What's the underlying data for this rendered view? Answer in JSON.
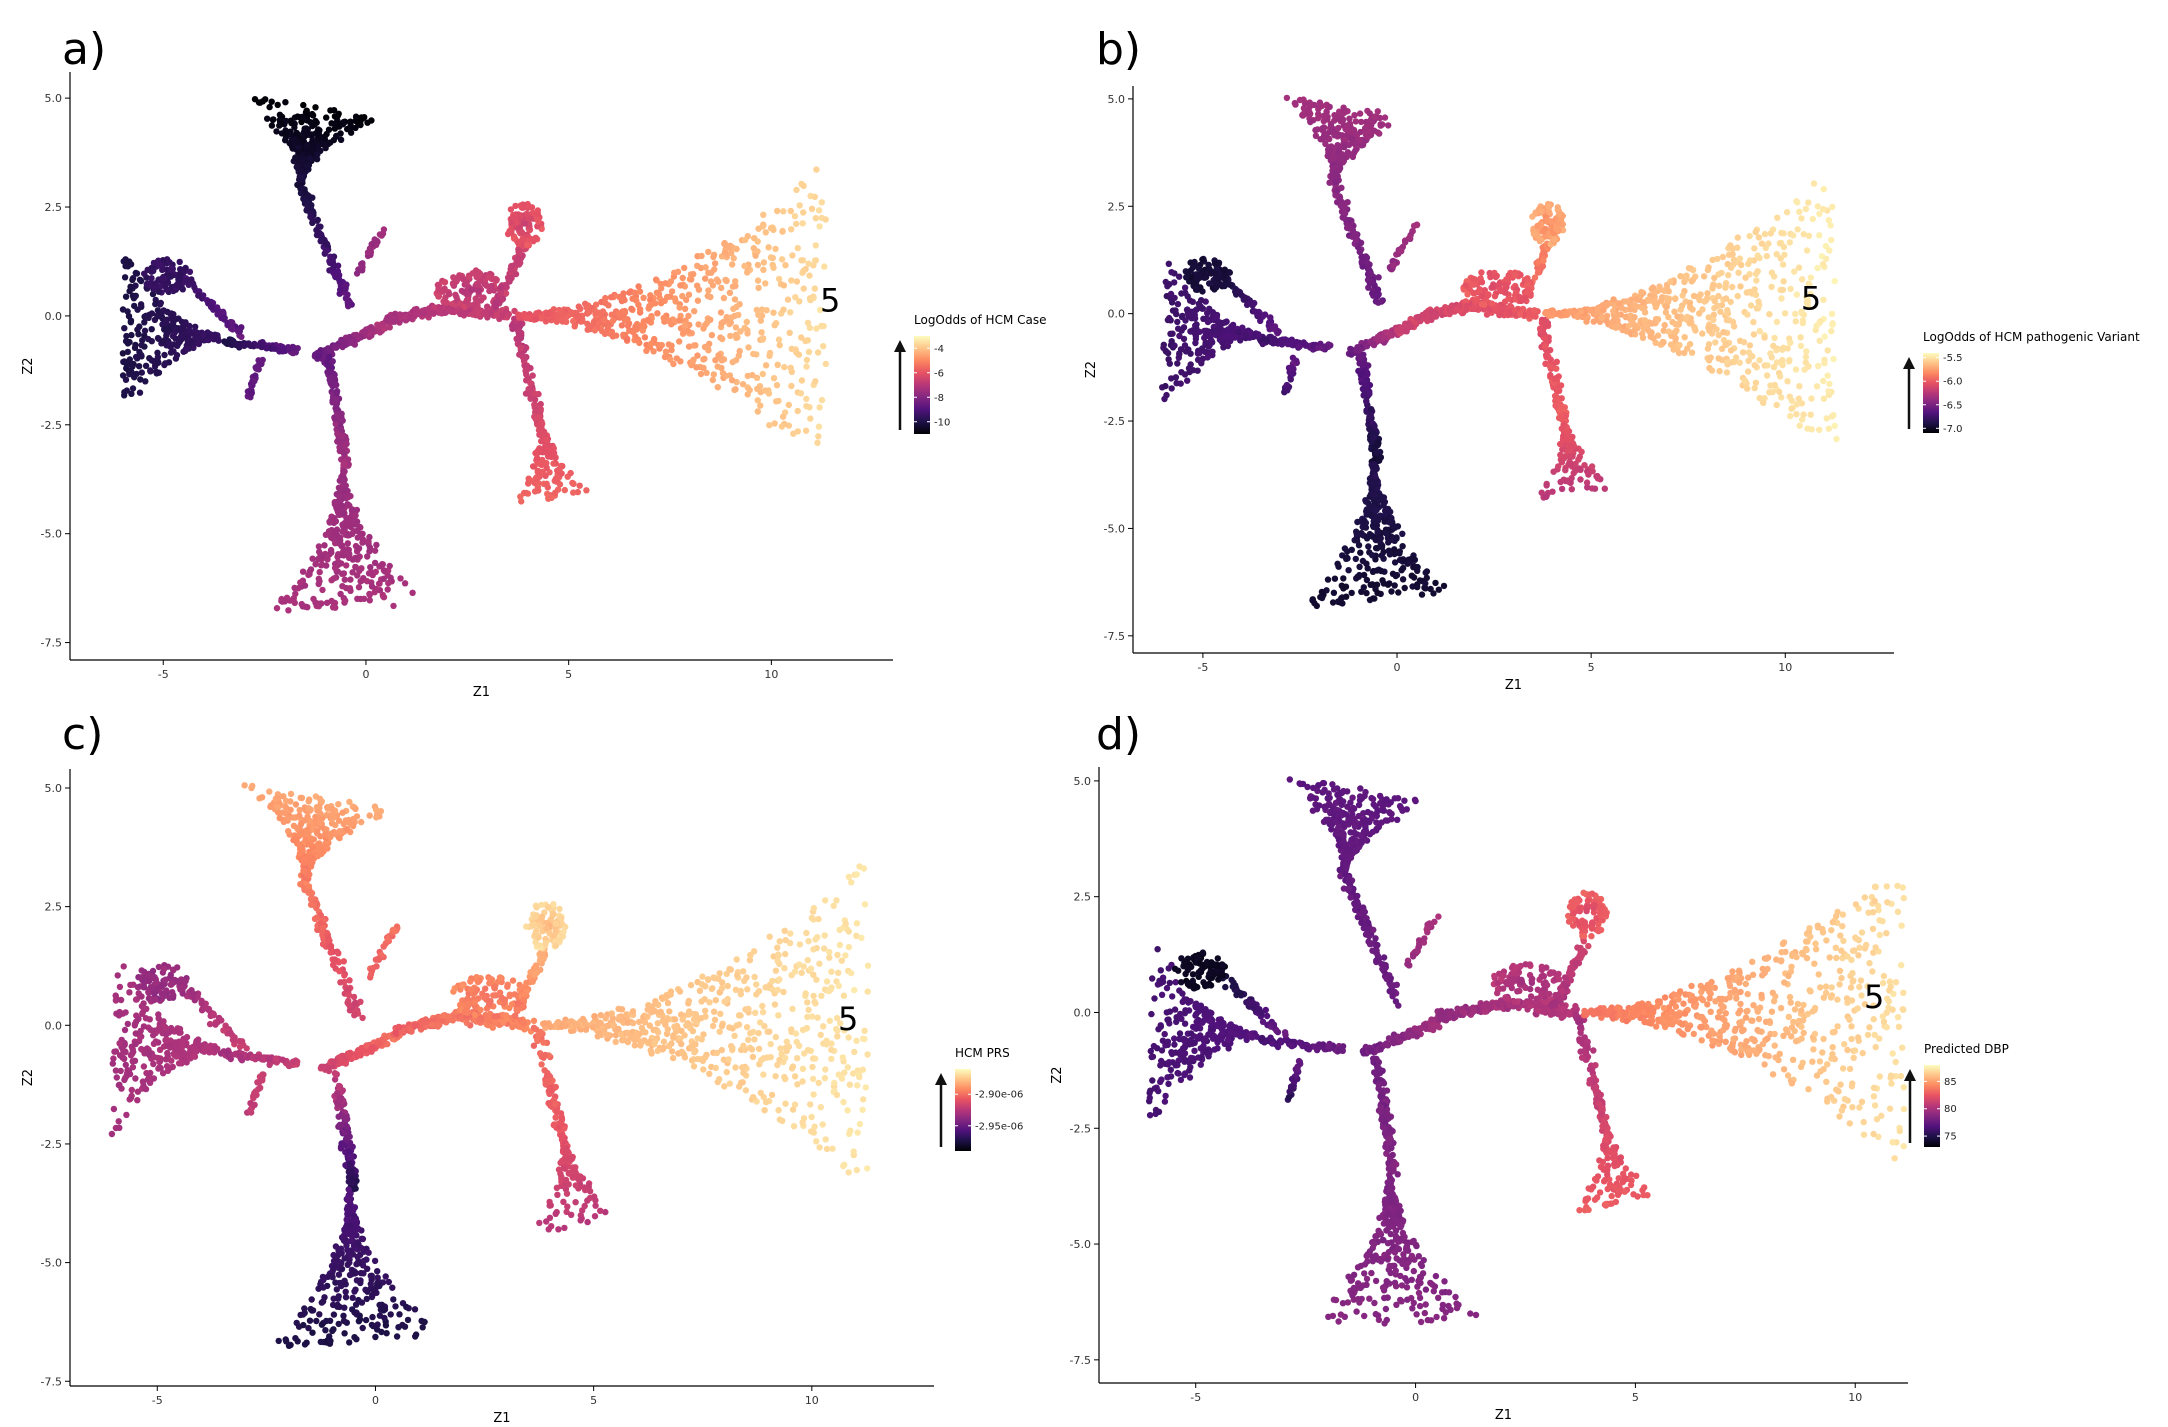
{
  "colors": {
    "magma": [
      "#000004",
      "#1d1147",
      "#51127c",
      "#832681",
      "#b73779",
      "#e75263",
      "#fc8961",
      "#fec488",
      "#fcfdbf"
    ]
  },
  "chart_data": [
    {
      "id": "a",
      "panel_label": "a)",
      "type": "scatter",
      "xlabel": "Z1",
      "ylabel": "Z2",
      "xlim": [
        -7.3,
        13
      ],
      "ylim": [
        -7.9,
        5.6
      ],
      "xticks": [
        -5,
        0,
        5,
        10
      ],
      "xtick_labels": [
        "-5",
        "0",
        "5",
        "10"
      ],
      "yticks": [
        5,
        2.5,
        0,
        -2.5,
        -5,
        -7.5
      ],
      "ytick_labels": [
        "5.0",
        "2.5",
        "0.0",
        "-2.5",
        "-5.0",
        "-7.5"
      ],
      "annotation": "5",
      "annotation_pos": [
        11.2,
        0.1
      ],
      "legend": {
        "title": "LogOdds of HCM Case",
        "ticks": [
          -4,
          -6,
          -8,
          -10
        ],
        "tick_labels": [
          "-4",
          "-6",
          "-8",
          "-10"
        ],
        "range": [
          -11,
          -3
        ]
      },
      "colormap": {
        "tips": [
          0.0,
          0.12,
          0.18,
          0.47
        ],
        "trunk": 0.3,
        "junction": 0.5,
        "upper_right": 0.55,
        "right_fan_inner": 0.62,
        "right_fan_outer": 0.93,
        "right_lower_inner": 0.58,
        "right_lower_outer": 0.68
      }
    },
    {
      "id": "b",
      "panel_label": "b)",
      "type": "scatter",
      "xlabel": "Z1",
      "ylabel": "Z2",
      "xlim": [
        -6.8,
        12.8
      ],
      "ylim": [
        -7.9,
        5.3
      ],
      "xticks": [
        -5,
        0,
        5,
        10
      ],
      "xtick_labels": [
        "-5",
        "0",
        "5",
        "10"
      ],
      "yticks": [
        5,
        2.5,
        0,
        -2.5,
        -5,
        -7.5
      ],
      "ytick_labels": [
        "5.0",
        "2.5",
        "0.0",
        "-2.5",
        "-5.0",
        "-7.5"
      ],
      "annotation": "5",
      "annotation_pos": [
        10.4,
        0.1
      ],
      "legend": {
        "title": "LogOdds of HCM pathogenic Variant",
        "ticks": [
          -5.5,
          -6.0,
          -6.5,
          -7.0
        ],
        "tick_labels": [
          "-5.5",
          "-6.0",
          "-6.5",
          "-7.0"
        ],
        "range": [
          -7.1,
          -5.4
        ]
      },
      "colormap": {
        "tips": [
          0.45,
          0.2,
          0.1,
          0.08
        ],
        "trunk": 0.3,
        "junction": 0.6,
        "upper_right": 0.75,
        "right_fan_inner": 0.78,
        "right_fan_outer": 0.97,
        "right_lower_inner": 0.66,
        "right_lower_outer": 0.5
      }
    },
    {
      "id": "c",
      "panel_label": "c)",
      "type": "scatter",
      "xlabel": "Z1",
      "ylabel": "Z2",
      "xlim": [
        -7.0,
        12.8
      ],
      "ylim": [
        -7.6,
        5.4
      ],
      "xticks": [
        -5,
        0,
        5,
        10
      ],
      "xtick_labels": [
        "-5",
        "0",
        "5",
        "10"
      ],
      "yticks": [
        5,
        2.5,
        0,
        -2.5,
        -5,
        -7.5
      ],
      "ytick_labels": [
        "5.0",
        "2.5",
        "0.0",
        "-2.5",
        "-5.0",
        "-7.5"
      ],
      "annotation": "5",
      "annotation_pos": [
        10.6,
        -0.1
      ],
      "legend": {
        "title": "HCM PRS",
        "ticks": [
          -2.9e-06,
          -2.95e-06
        ],
        "tick_labels": [
          "-2.90e-06",
          "-2.95e-06"
        ],
        "range": [
          -2.99e-06,
          -2.86e-06
        ]
      },
      "colormap": {
        "tips": [
          0.82,
          0.45,
          0.42,
          0.12
        ],
        "trunk": 0.55,
        "junction": 0.7,
        "upper_right": 0.85,
        "right_fan_inner": 0.82,
        "right_fan_outer": 0.95,
        "right_lower_inner": 0.62,
        "right_lower_outer": 0.5
      }
    },
    {
      "id": "d",
      "panel_label": "d)",
      "type": "scatter",
      "xlabel": "Z1",
      "ylabel": "Z2",
      "xlim": [
        -7.2,
        11.2
      ],
      "ylim": [
        -8.0,
        5.3
      ],
      "xticks": [
        -5,
        0,
        5,
        10
      ],
      "xtick_labels": [
        "-5",
        "0",
        "5",
        "10"
      ],
      "yticks": [
        5,
        2.5,
        0,
        -2.5,
        -5,
        -7.5
      ],
      "ytick_labels": [
        "5.0",
        "2.5",
        "0.0",
        "-2.5",
        "-5.0",
        "-7.5"
      ],
      "annotation": "5",
      "annotation_pos": [
        10.2,
        0.1
      ],
      "legend": {
        "title": "Predicted DBP",
        "ticks": [
          85,
          80,
          75
        ],
        "tick_labels": [
          "85",
          "80",
          "75"
        ],
        "range": [
          73,
          88
        ]
      },
      "colormap": {
        "tips": [
          0.28,
          0.22,
          0.05,
          0.38
        ],
        "trunk": 0.32,
        "junction": 0.45,
        "upper_right": 0.58,
        "right_fan_inner": 0.7,
        "right_fan_outer": 0.95,
        "right_lower_inner": 0.58,
        "right_lower_outer": 0.65
      }
    }
  ]
}
